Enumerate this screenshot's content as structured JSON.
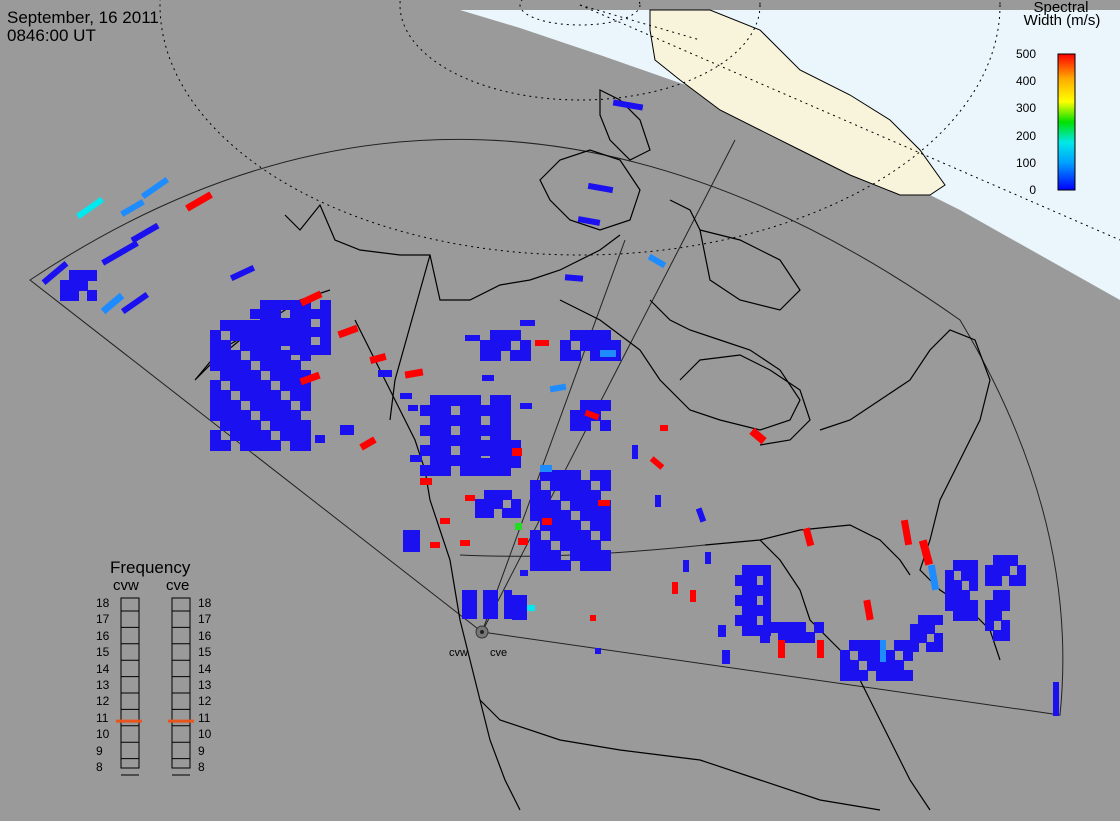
{
  "header": {
    "date": "September, 16 2011",
    "time": "0846:00 UT"
  },
  "colorbar": {
    "title_line1": "Spectral",
    "title_line2": "Width (m/s)",
    "ticks": [
      "500",
      "400",
      "300",
      "200",
      "100",
      "0"
    ],
    "colors": [
      "#ff0000",
      "#ffaa00",
      "#ffff00",
      "#00e000",
      "#00e0e0",
      "#00a0ff",
      "#0000ff"
    ]
  },
  "frequency_panel": {
    "title": "Frequency",
    "radars": [
      "cvw",
      "cve"
    ],
    "freqs": [
      "18",
      "17",
      "16",
      "15",
      "14",
      "13",
      "12",
      "11",
      "10",
      "9",
      "8"
    ],
    "cvw_mhz": 10.8,
    "cve_mhz": 10.8,
    "marker_color": "#e8541c"
  },
  "sites": {
    "west": "cvw",
    "east": "cve"
  },
  "map_colors": {
    "ocean": "#9a9a9a",
    "daylight": "#eaf6fc",
    "land_day": "#f8f4dc",
    "echo_blue": "#1a10f0",
    "echo_red": "#ff0000",
    "echo_lightblue": "#1e8cff",
    "echo_cyan": "#00e8f0",
    "echo_green": "#22dd22"
  }
}
